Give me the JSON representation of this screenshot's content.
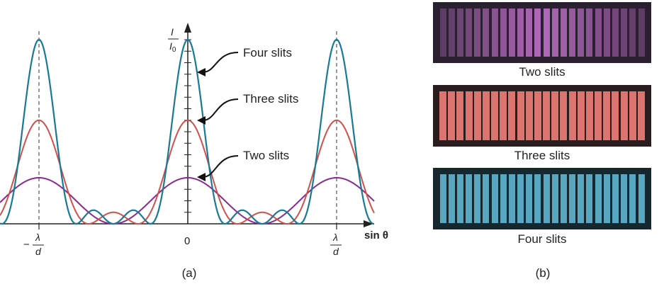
{
  "panel_a": {
    "caption": "(a)",
    "y_axis_label_num": "I",
    "y_axis_label_den": "I",
    "y_axis_label_den_sub": "0",
    "x_axis_label": "sin θ",
    "tick_zero": "0",
    "tick_neg": "−",
    "tick_lambda": "λ",
    "tick_d": "d",
    "annotations": [
      "Four slits",
      "Three slits",
      "Two slits"
    ]
  },
  "panel_b": {
    "caption": "(b)",
    "strips": [
      {
        "label": "Two slits",
        "color": "#c070c8",
        "background": "#2b2030"
      },
      {
        "label": "Three slits",
        "color": "#f08078",
        "background": "#2a1d1e"
      },
      {
        "label": "Four slits",
        "color": "#60b4d0",
        "background": "#16282e"
      }
    ]
  },
  "colors": {
    "four_slits": "#1a7a96",
    "three_slits": "#d0504c",
    "two_slits": "#8a2a8e",
    "axis": "#222222"
  },
  "chart_data": {
    "type": "line",
    "xlabel": "sin θ",
    "ylabel": "I / I0",
    "x_ticks": [
      "−λ/d",
      "0",
      "λ/d"
    ],
    "series": [
      {
        "name": "Four slits",
        "peak": 1.0,
        "subsidiary_maxima_between_principal": 2
      },
      {
        "name": "Three slits",
        "peak": 0.5625,
        "subsidiary_maxima_between_principal": 1
      },
      {
        "name": "Two slits",
        "peak": 0.25,
        "subsidiary_maxima_between_principal": 0
      }
    ]
  }
}
